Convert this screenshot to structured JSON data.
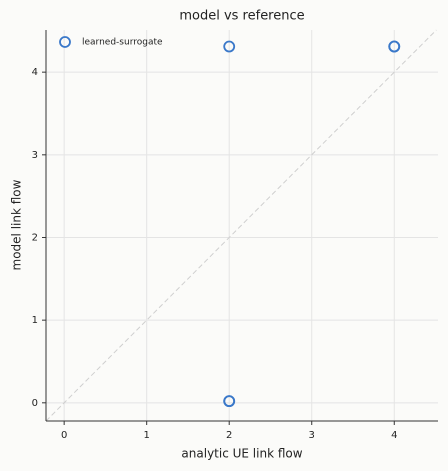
{
  "chart_data": {
    "type": "scatter",
    "title": "model vs reference",
    "x_label": "analytic UE link flow",
    "y_label": "model link flow",
    "series": [
      {
        "name": "learned-surrogate",
        "color": "#3a78c9",
        "x": [
          2,
          4,
          4,
          2,
          2
        ],
        "values": [
          4.31,
          4.31,
          4.31,
          0.02,
          0.02
        ]
      }
    ],
    "xlim": [
      -0.22,
      4.53
    ],
    "ylim": [
      -0.22,
      4.51
    ],
    "xticks": [
      0,
      1,
      2,
      3,
      4
    ],
    "yticks": [
      0,
      1,
      2,
      3,
      4
    ],
    "grid": true,
    "reference_line": true,
    "legend": "upper left"
  }
}
